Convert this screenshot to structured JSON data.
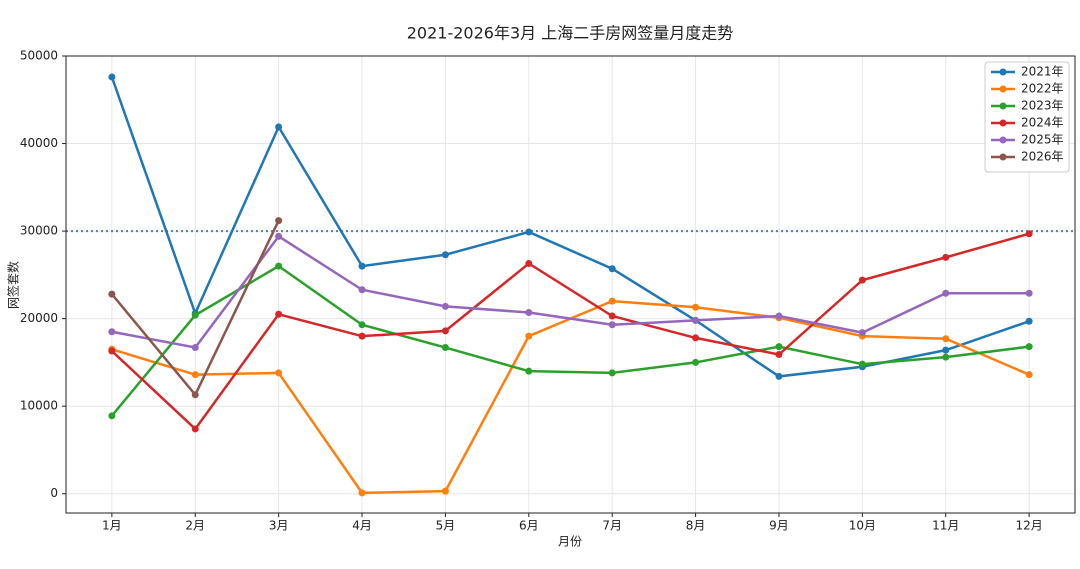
{
  "chart_data": {
    "type": "line",
    "title": "2021-2026年3月 上海二手房网签量月度走势",
    "x_label": "月份",
    "y_label": "网签套数",
    "categories": [
      "1月",
      "2月",
      "3月",
      "4月",
      "5月",
      "6月",
      "7月",
      "8月",
      "9月",
      "10月",
      "11月",
      "12月"
    ],
    "series": [
      {
        "name": "2021年",
        "color": "#1f77b4",
        "values": [
          47600,
          20600,
          41900,
          26000,
          27300,
          29900,
          25700,
          19800,
          13400,
          14500,
          16400,
          19700
        ]
      },
      {
        "name": "2022年",
        "color": "#ff7f0e",
        "values": [
          16500,
          13600,
          13800,
          100,
          300,
          18000,
          22000,
          21300,
          20100,
          18000,
          17700,
          13600
        ]
      },
      {
        "name": "2023年",
        "color": "#2ca02c",
        "values": [
          8900,
          20400,
          26000,
          19300,
          16700,
          14000,
          13800,
          15000,
          16800,
          14800,
          15600,
          16800
        ]
      },
      {
        "name": "2024年",
        "color": "#d62728",
        "values": [
          16300,
          7400,
          20500,
          18000,
          18600,
          26300,
          20300,
          17800,
          15900,
          24400,
          27000,
          29700
        ]
      },
      {
        "name": "2025年",
        "color": "#9467bd",
        "values": [
          18500,
          16700,
          29400,
          23300,
          21400,
          20700,
          19300,
          19800,
          20300,
          18400,
          22900,
          22900
        ]
      },
      {
        "name": "2026年",
        "color": "#8c564b",
        "values": [
          22800,
          11300,
          31200,
          null,
          null,
          null,
          null,
          null,
          null,
          null,
          null,
          null
        ]
      }
    ],
    "reference_line": {
      "value": 30000,
      "color": "#4a7ebb"
    },
    "ylim": [
      -2200,
      50000
    ],
    "yticks": [
      0,
      10000,
      20000,
      30000,
      40000,
      50000
    ],
    "grid": true,
    "legend": "upper right"
  }
}
